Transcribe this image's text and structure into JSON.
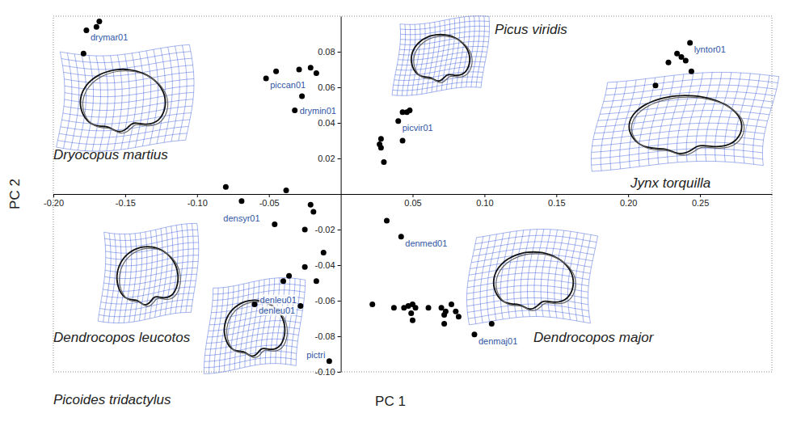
{
  "chart_data": {
    "type": "scatter",
    "x_label": "PC 1",
    "y_label": "PC 2",
    "xlim": [
      -0.2,
      0.3
    ],
    "ylim": [
      -0.1,
      0.1
    ],
    "xticks": [
      {
        "value": -0.2,
        "label": "-0.20"
      },
      -0.15,
      {
        "value": -0.1,
        "label": "-0.10"
      },
      -0.05,
      0.05,
      {
        "value": 0.1,
        "label": "0.10"
      },
      0.15,
      {
        "value": 0.2,
        "label": "0.20"
      },
      0.25
    ],
    "yticks": [
      {
        "value": -0.1,
        "label": "-0.10"
      },
      -0.08,
      -0.06,
      -0.04,
      -0.02,
      0.02,
      0.04,
      0.06,
      0.08
    ],
    "grid": false,
    "annotations": [
      "Dryocopus martius",
      "Picus viridis",
      "Jynx torquilla",
      "Dendrocopos leucotos",
      "Picoides tridactylus",
      "Dendrocopos major"
    ],
    "series": [
      {
        "color": "#000000",
        "marker": "circle",
        "x": [
          -0.177,
          -0.168,
          -0.17,
          -0.179,
          -0.052,
          -0.045,
          -0.029,
          -0.021,
          -0.017,
          -0.027,
          -0.032,
          0.04,
          0.043,
          0.046,
          0.048,
          0.043,
          0.028,
          0.027,
          0.028,
          0.03,
          0.243,
          0.234,
          0.237,
          0.24,
          0.228,
          0.219,
          0.244,
          -0.08,
          -0.069,
          -0.038,
          -0.021,
          -0.019,
          -0.046,
          -0.025,
          -0.012,
          -0.025,
          -0.036,
          -0.04,
          -0.017,
          -0.06,
          -0.028,
          -0.008,
          0.032,
          0.042,
          0.022,
          0.037,
          0.044,
          0.047,
          0.05,
          0.052,
          0.049,
          0.05,
          0.061,
          0.07,
          0.073,
          0.077,
          0.08,
          0.082,
          0.072,
          0.072,
          0.093,
          0.105
        ],
        "y": [
          0.092,
          0.097,
          0.094,
          0.079,
          0.065,
          0.069,
          0.07,
          0.071,
          0.068,
          0.055,
          0.047,
          0.041,
          0.046,
          0.046,
          0.047,
          0.03,
          0.031,
          0.028,
          0.026,
          0.018,
          0.085,
          0.079,
          0.077,
          0.075,
          0.074,
          0.061,
          0.069,
          0.004,
          -0.004,
          0.002,
          -0.006,
          -0.01,
          -0.017,
          -0.02,
          -0.033,
          -0.041,
          -0.046,
          -0.049,
          -0.049,
          -0.062,
          -0.063,
          -0.094,
          -0.015,
          -0.024,
          -0.062,
          -0.064,
          -0.064,
          -0.063,
          -0.062,
          -0.064,
          -0.067,
          -0.071,
          -0.064,
          -0.064,
          -0.066,
          -0.062,
          -0.066,
          -0.069,
          -0.068,
          -0.073,
          -0.079,
          -0.073
        ],
        "labels": [
          "drymar01",
          null,
          null,
          null,
          "piccan01",
          null,
          null,
          null,
          null,
          null,
          "drymin01",
          "picvir01",
          null,
          null,
          null,
          null,
          null,
          null,
          null,
          null,
          "lyntor01",
          null,
          null,
          null,
          null,
          null,
          null,
          null,
          "densyr01",
          null,
          null,
          null,
          null,
          null,
          null,
          null,
          null,
          null,
          null,
          "denleu01",
          "denleu01",
          "pictri",
          null,
          "denmed01",
          null,
          null,
          null,
          null,
          null,
          null,
          null,
          null,
          null,
          null,
          null,
          null,
          null,
          null,
          null,
          null,
          "denmaj01",
          null
        ]
      }
    ]
  }
}
